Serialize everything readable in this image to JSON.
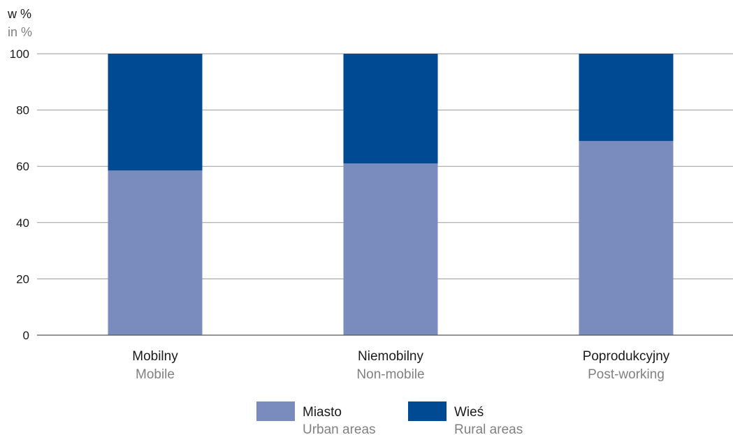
{
  "chart_data": {
    "type": "bar",
    "stacked": true,
    "unit_label": "w %",
    "unit_label_en": "in %",
    "ylim": [
      0,
      100
    ],
    "yticks": [
      0,
      20,
      40,
      60,
      80,
      100
    ],
    "grid": true,
    "legend_position": "bottom",
    "categories": [
      "Mobilny",
      "Niemobilny",
      "Poprodukcyjny"
    ],
    "categories_en": [
      "Mobile",
      "Non-mobile",
      "Post-working"
    ],
    "series": [
      {
        "name": "Miasto",
        "name_en": "Urban areas",
        "color": "#7a8cbd",
        "values": [
          58.5,
          61,
          69
        ]
      },
      {
        "name": "Wieś",
        "name_en": "Rural areas",
        "color": "#004a93",
        "values": [
          41.5,
          39,
          31
        ]
      }
    ]
  }
}
